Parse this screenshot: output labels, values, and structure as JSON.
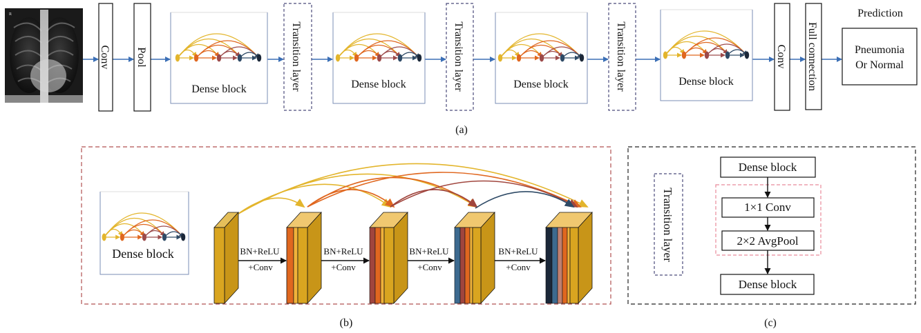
{
  "panel_a": {
    "caption": "(a)",
    "conv": "Conv",
    "pool": "Pool",
    "dense_block": "Dense block",
    "transition": "Transition layer",
    "conv2": "Conv",
    "full_connection": "Full connection",
    "prediction_title": "Prediction",
    "prediction_line1": "Pneumonia",
    "prediction_line2": "Or Normal",
    "xray_corner_mark": "R"
  },
  "panel_b": {
    "caption": "(b)",
    "legend_label": "Dense block",
    "step_line1": "BN+ReLU",
    "step_line2": "+Conv"
  },
  "panel_c": {
    "caption": "(c)",
    "transition": "Transition layer",
    "top": "Dense block",
    "op1": "1×1 Conv",
    "op2": "2×2 AvgPool",
    "bottom": "Dense block"
  },
  "colors": {
    "arrow_blue": "#3b6fb6",
    "gold": "#d9a520",
    "orange": "#e0671f",
    "maroon": "#9c4a4a",
    "slate": "#2e4a66",
    "navy": "#1b2738",
    "panel_b_border": "#b05050",
    "panel_c_inner_border": "#e88a9a",
    "transition_border": "#4a4a7a"
  }
}
